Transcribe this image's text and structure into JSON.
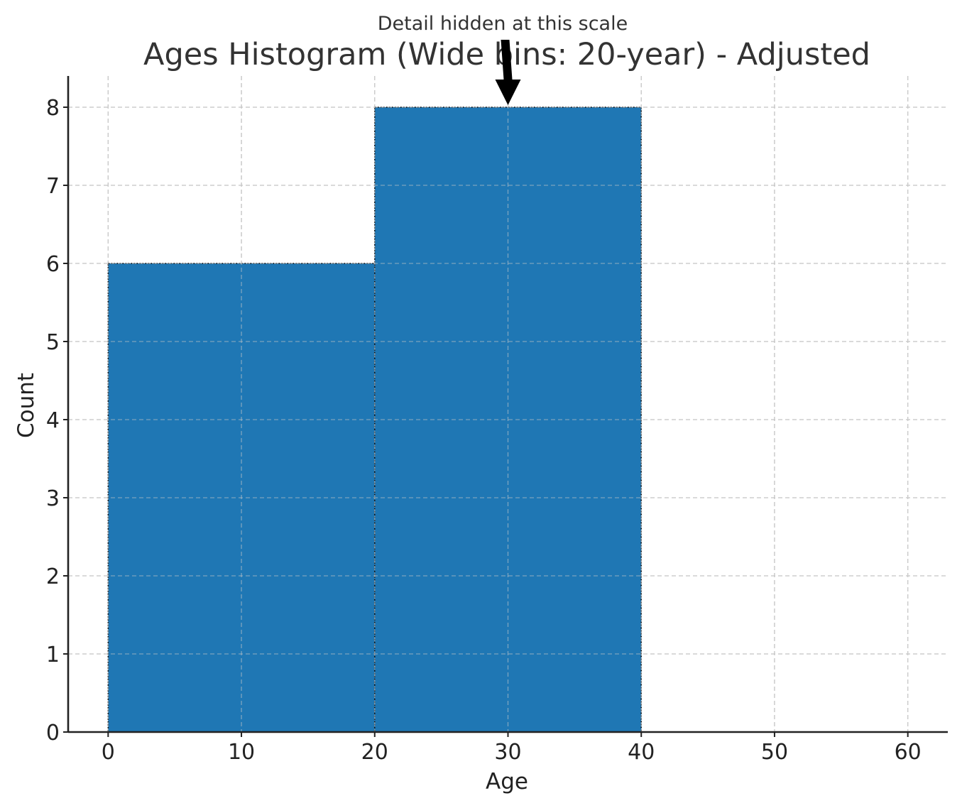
{
  "chart_data": {
    "type": "bar",
    "title": "Ages Histogram (Wide bins: 20-year) - Adjusted",
    "xlabel": "Age",
    "ylabel": "Count",
    "bins": [
      {
        "start": 0,
        "end": 20,
        "count": 6
      },
      {
        "start": 20,
        "end": 40,
        "count": 8
      }
    ],
    "xlim": [
      -3,
      63
    ],
    "ylim": [
      0,
      8.4
    ],
    "xticks": [
      0,
      10,
      20,
      30,
      40,
      50,
      60
    ],
    "yticks": [
      0,
      1,
      2,
      3,
      4,
      5,
      6,
      7,
      8
    ],
    "grid": true,
    "bar_color": "#1f77b4",
    "annotation": {
      "text": "Detail hidden at this scale",
      "x": 30,
      "y": 8
    }
  }
}
